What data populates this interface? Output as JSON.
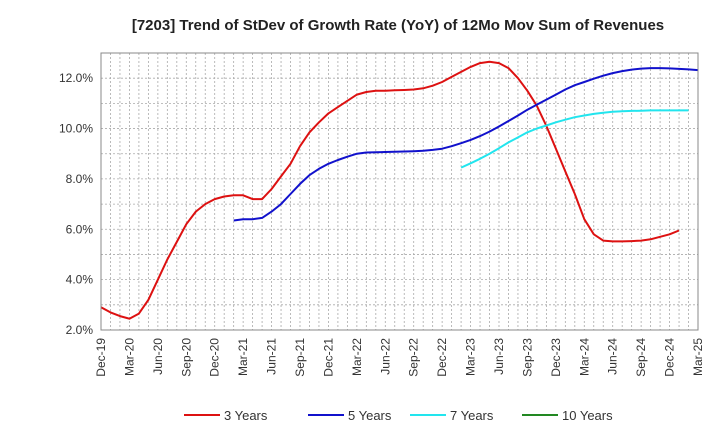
{
  "chart_data": {
    "type": "line",
    "title": "[7203]  Trend of StDev of Growth Rate (YoY) of 12Mo Mov Sum of Revenues",
    "xlabel": "",
    "ylabel": "",
    "ylim": [
      2.0,
      13.0
    ],
    "yticks": [
      2.0,
      4.0,
      6.0,
      8.0,
      10.0,
      12.0
    ],
    "ytick_labels": [
      "2.0%",
      "4.0%",
      "6.0%",
      "8.0%",
      "10.0%",
      "12.0%"
    ],
    "x_start": "Dec-19",
    "xtick_labels": [
      "Dec-19",
      "Mar-20",
      "Jun-20",
      "Sep-20",
      "Dec-20",
      "Mar-21",
      "Jun-21",
      "Sep-21",
      "Dec-21",
      "Mar-22",
      "Jun-22",
      "Sep-22",
      "Dec-22",
      "Mar-23",
      "Jun-23",
      "Sep-23",
      "Dec-23",
      "Mar-24",
      "Jun-24",
      "Sep-24",
      "Dec-24",
      "Mar-25"
    ],
    "grid": true,
    "legend_position": "bottom",
    "series": [
      {
        "name": "3 Years",
        "color": "#dd1111",
        "start_index": 0,
        "values": [
          2.9,
          2.7,
          2.55,
          2.45,
          2.65,
          3.2,
          4.0,
          4.8,
          5.5,
          6.2,
          6.7,
          7.0,
          7.2,
          7.3,
          7.35,
          7.35,
          7.2,
          7.2,
          7.6,
          8.1,
          8.6,
          9.3,
          9.85,
          10.25,
          10.6,
          10.85,
          11.1,
          11.35,
          11.45,
          11.5,
          11.5,
          11.52,
          11.53,
          11.55,
          11.6,
          11.7,
          11.85,
          12.05,
          12.25,
          12.45,
          12.6,
          12.65,
          12.6,
          12.4,
          12.0,
          11.5,
          10.9,
          10.1,
          9.2,
          8.3,
          7.4,
          6.4,
          5.8,
          5.55,
          5.52,
          5.52,
          5.53,
          5.55,
          5.6,
          5.7,
          5.8,
          5.95
        ]
      },
      {
        "name": "5 Years",
        "color": "#1111cc",
        "start_index": 14,
        "values": [
          6.35,
          6.4,
          6.4,
          6.45,
          6.7,
          7.0,
          7.4,
          7.8,
          8.15,
          8.4,
          8.6,
          8.75,
          8.88,
          9.0,
          9.05,
          9.06,
          9.07,
          9.08,
          9.09,
          9.1,
          9.12,
          9.15,
          9.2,
          9.3,
          9.42,
          9.55,
          9.7,
          9.88,
          10.08,
          10.3,
          10.52,
          10.75,
          10.95,
          11.15,
          11.35,
          11.55,
          11.72,
          11.85,
          11.98,
          12.1,
          12.2,
          12.28,
          12.34,
          12.38,
          12.4,
          12.4,
          12.39,
          12.37,
          12.35,
          12.32
        ]
      },
      {
        "name": "7 Years",
        "color": "#22e5ee",
        "start_index": 38,
        "values": [
          8.45,
          8.62,
          8.8,
          9.0,
          9.22,
          9.45,
          9.65,
          9.85,
          10.0,
          10.12,
          10.25,
          10.35,
          10.45,
          10.52,
          10.58,
          10.63,
          10.67,
          10.69,
          10.7,
          10.71,
          10.72,
          10.72,
          10.72,
          10.72,
          10.72
        ]
      },
      {
        "name": "10 Years",
        "color": "#228822",
        "start_index": 0,
        "values": []
      }
    ]
  }
}
